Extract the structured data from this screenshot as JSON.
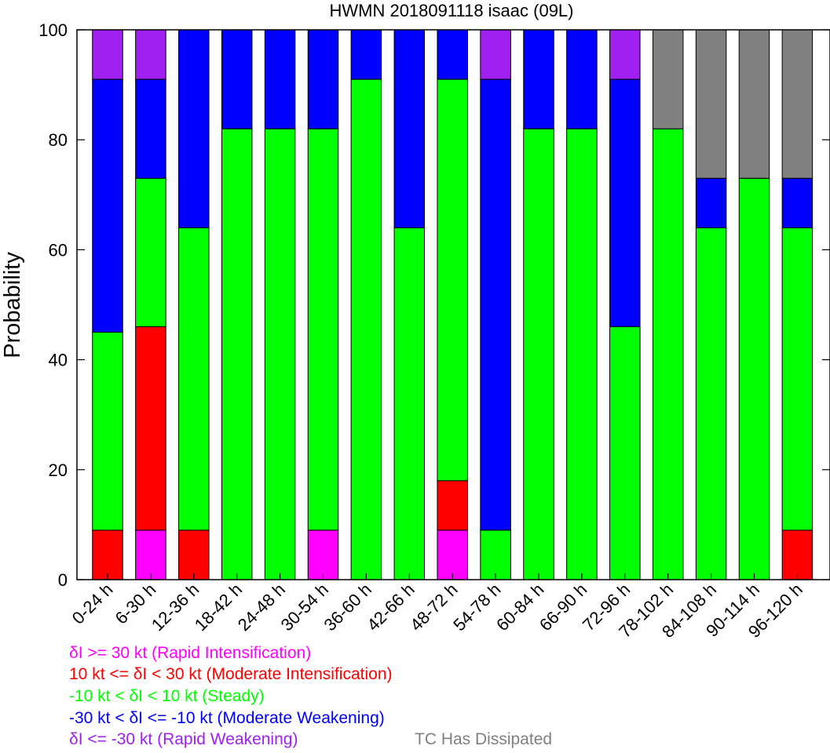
{
  "chart_data": {
    "type": "bar",
    "stacked": true,
    "title": "HWMN 2018091118 isaac (09L)",
    "xlabel": "",
    "ylabel": "Probability",
    "ylim": [
      0,
      100
    ],
    "yticks": [
      "0",
      "20",
      "40",
      "60",
      "80",
      "100"
    ],
    "grid": false,
    "categories": [
      "0-24 h",
      "6-30 h",
      "12-36 h",
      "18-42 h",
      "24-48 h",
      "30-54 h",
      "36-60 h",
      "42-66 h",
      "48-72 h",
      "54-78 h",
      "60-84 h",
      "66-90 h",
      "72-96 h",
      "78-102 h",
      "84-108 h",
      "90-114 h",
      "96-120 h"
    ],
    "series": [
      {
        "key": "ri",
        "color": "#ff00ff",
        "values": [
          0,
          9,
          0,
          0,
          0,
          9,
          0,
          0,
          9,
          0,
          0,
          0,
          0,
          0,
          0,
          0,
          0
        ]
      },
      {
        "key": "mi",
        "color": "#ff0000",
        "values": [
          9,
          37,
          9,
          0,
          0,
          0,
          0,
          0,
          9,
          0,
          0,
          0,
          0,
          0,
          0,
          0,
          9
        ]
      },
      {
        "key": "steady",
        "color": "#00ff00",
        "values": [
          36,
          27,
          55,
          82,
          82,
          73,
          91,
          64,
          73,
          9,
          82,
          82,
          46,
          82,
          64,
          73,
          55
        ]
      },
      {
        "key": "mw",
        "color": "#0000ff",
        "values": [
          46,
          18,
          36,
          18,
          18,
          18,
          9,
          36,
          9,
          82,
          18,
          18,
          45,
          0,
          9,
          0,
          9
        ]
      },
      {
        "key": "rw",
        "color": "#a020f0",
        "values": [
          9,
          9,
          0,
          0,
          0,
          0,
          0,
          0,
          0,
          9,
          0,
          0,
          9,
          0,
          0,
          0,
          0
        ]
      },
      {
        "key": "dissipated",
        "color": "#808080",
        "values": [
          0,
          0,
          0,
          0,
          0,
          0,
          0,
          0,
          0,
          0,
          0,
          0,
          0,
          18,
          27,
          27,
          27
        ]
      }
    ],
    "legend": {
      "placement": "bottom-left",
      "items": [
        {
          "text": "δI >= 30 kt (Rapid Intensification)",
          "color": "#ff00ff"
        },
        {
          "text": "10 kt <= δI < 30 kt (Moderate Intensification)",
          "color": "#ff0000"
        },
        {
          "text": "-10 kt < δI < 10 kt (Steady)",
          "color": "#00ff00"
        },
        {
          "text": "-30 kt < δI <= -10 kt (Moderate Weakening)",
          "color": "#0000ff"
        },
        {
          "text": "δI <= -30 kt (Rapid Weakening)",
          "color": "#a020f0"
        },
        {
          "text": "TC Has Dissipated",
          "color": "#808080"
        }
      ]
    }
  }
}
